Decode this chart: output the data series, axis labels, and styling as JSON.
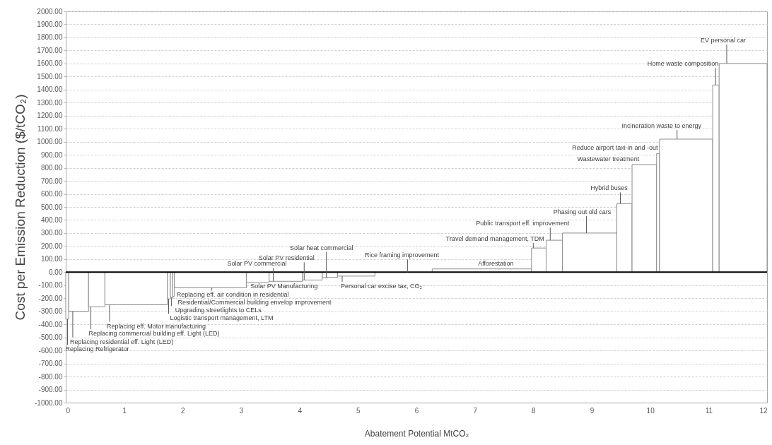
{
  "chart_data": {
    "type": "histogram",
    "xlabel": "Abatement Potential MtCO₂",
    "ylabel": "Cost per Emission Reduction ($/tCO₂)",
    "bins": [
      0,
      0.05,
      0.39,
      0.67,
      1.74,
      1.79,
      1.83,
      1.86,
      3.09,
      3.48,
      4.05,
      4.39,
      4.65,
      5.29,
      6.27,
      7.97,
      8.22,
      8.5,
      9.43,
      9.69,
      10.11,
      10.16,
      11.07,
      11.18,
      12
    ],
    "values": [
      -360,
      -300,
      -265,
      -250,
      -205,
      -195,
      -185,
      -120,
      -80,
      -70,
      -60,
      -40,
      -30,
      null,
      25,
      185,
      245,
      300,
      525,
      825,
      910,
      1020,
      1435,
      1600
    ],
    "color": "#ffffff",
    "xlim": [
      0,
      12
    ],
    "xticks": [
      0,
      1,
      2,
      3,
      4,
      5,
      6,
      7,
      8,
      9,
      10,
      11,
      12
    ],
    "ylim": [
      -1000,
      2000
    ],
    "yticks": [
      {
        "value": -1000,
        "label": "-1000.00"
      },
      {
        "value": -900,
        "label": "-900.00"
      },
      {
        "value": -800,
        "label": "-800.00"
      },
      {
        "value": -700,
        "label": "-700.00"
      },
      {
        "value": -600,
        "label": "-600.00"
      },
      {
        "value": -500,
        "label": "-500.00"
      },
      {
        "value": -400,
        "label": "-400.00"
      },
      {
        "value": -300,
        "label": "-300.00"
      },
      {
        "value": -200,
        "label": "-200.00"
      },
      {
        "value": -100,
        "label": "-100.00"
      },
      {
        "value": 0,
        "label": "0.00"
      },
      {
        "value": 100,
        "label": "100.00"
      },
      {
        "value": 200,
        "label": "200.00"
      },
      {
        "value": 300,
        "label": "300.00"
      },
      {
        "value": 400,
        "label": "400.00"
      },
      {
        "value": 500,
        "label": "500.00"
      },
      {
        "value": 600,
        "label": "600.00"
      },
      {
        "value": 700,
        "label": "700.00"
      },
      {
        "value": 800,
        "label": "800.00"
      },
      {
        "value": 900,
        "label": "900.00"
      },
      {
        "value": 1000,
        "label": "1000.00"
      },
      {
        "value": 1100,
        "label": "1100.00"
      },
      {
        "value": 1200,
        "label": "1200.00"
      },
      {
        "value": 1300,
        "label": "1300.00"
      },
      {
        "value": 1400,
        "label": "1400.00"
      },
      {
        "value": 1500,
        "label": "1500.00"
      },
      {
        "value": 1600,
        "label": "1600.00"
      },
      {
        "value": 1700,
        "label": "1700.00"
      },
      {
        "value": 1800,
        "label": "1800.00"
      },
      {
        "value": 1900,
        "label": "1900.00"
      },
      {
        "value": 2000,
        "label": "2000.00"
      }
    ],
    "grid": "y",
    "ref_lines": [
      {
        "axis": "y",
        "value": 0,
        "color": "#000000"
      }
    ],
    "annotations": [
      {
        "text": "Replacing Refrigerator",
        "x": 0.03,
        "y": -360
      },
      {
        "text": "Replacing residential eff. Light (LED)",
        "x": 0.12,
        "y": -300
      },
      {
        "text": "Replacing commercial building eff. Light (LED)",
        "x": 0.43,
        "y": -265
      },
      {
        "text": "Replacing eff. Motor manufacturing",
        "x": 0.75,
        "y": -250
      },
      {
        "text": "Logistic transport management, LTM",
        "x": 1.76,
        "y": -205
      },
      {
        "text": "Upgrading streetlights to CELs",
        "x": 1.81,
        "y": -195
      },
      {
        "text": "Residential/Commercial building envelop improvement",
        "x": 1.845,
        "y": -185
      },
      {
        "text": "Replacing eff. air condition in residential",
        "x": 2.5,
        "y": -120
      },
      {
        "text": "Solar PV Manufacturing",
        "x": 3.3,
        "y": -80
      },
      {
        "text": "Solar PV commercial",
        "x": 3.55,
        "y": -70
      },
      {
        "text": "Solar PV residential",
        "x": 4.08,
        "y": -60
      },
      {
        "text": "Solar heat commercial",
        "x": 4.46,
        "y": -40
      },
      {
        "text": "Personal car excise tax, CO₂",
        "x": 4.73,
        "y": -30
      },
      {
        "text": "Rice framing improvement",
        "x": 5.85,
        "y": 0
      },
      {
        "text": "Afforestation",
        "x": 7.36,
        "y": 25
      },
      {
        "text": "Travel demand management, TDM",
        "x": 8.0,
        "y": 185
      },
      {
        "text": "Public transport eff. improvement",
        "x": 8.29,
        "y": 245
      },
      {
        "text": "Phasing out old cars",
        "x": 8.91,
        "y": 300
      },
      {
        "text": "Hybrid buses",
        "x": 9.49,
        "y": 525
      },
      {
        "text": "Wastewater treatment",
        "x": 9.9,
        "y": 825
      },
      {
        "text": "Reduce airport taxi-in and -out",
        "x": 10.13,
        "y": 910
      },
      {
        "text": "Incineration waste to energy",
        "x": 10.46,
        "y": 1020
      },
      {
        "text": "Home waste composition",
        "x": 11.12,
        "y": 1435
      },
      {
        "text": "EV personal car",
        "x": 11.31,
        "y": 1600
      }
    ]
  }
}
